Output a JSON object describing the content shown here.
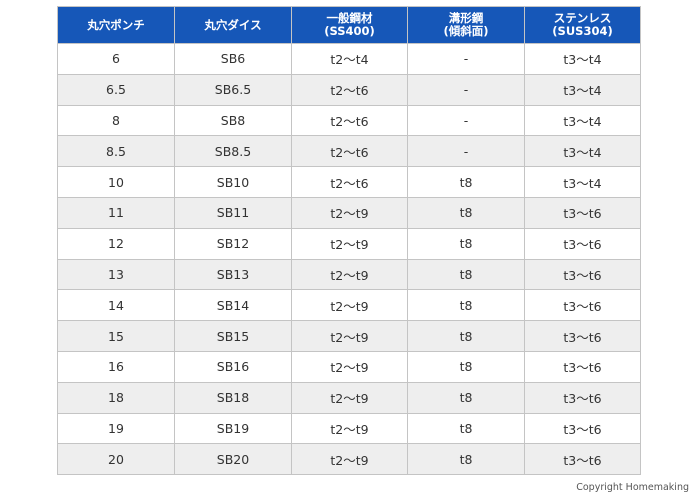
{
  "table": {
    "headers": [
      [
        "丸穴ポンチ"
      ],
      [
        "丸穴ダイス"
      ],
      [
        "一般鋼材",
        "(SS400)"
      ],
      [
        "溝形鋼",
        "(傾斜面)"
      ],
      [
        "ステンレス",
        "(SUS304)"
      ]
    ],
    "rows": [
      [
        "6",
        "SB6",
        "t2～t4",
        "-",
        "t3～t4"
      ],
      [
        "6.5",
        "SB6.5",
        "t2～t6",
        "-",
        "t3～t4"
      ],
      [
        "8",
        "SB8",
        "t2～t6",
        "-",
        "t3～t4"
      ],
      [
        "8.5",
        "SB8.5",
        "t2～t6",
        "-",
        "t3～t4"
      ],
      [
        "10",
        "SB10",
        "t2～t6",
        "t8",
        "t3～t4"
      ],
      [
        "11",
        "SB11",
        "t2～t9",
        "t8",
        "t3～t6"
      ],
      [
        "12",
        "SB12",
        "t2～t9",
        "t8",
        "t3～t6"
      ],
      [
        "13",
        "SB13",
        "t2～t9",
        "t8",
        "t3～t6"
      ],
      [
        "14",
        "SB14",
        "t2～t9",
        "t8",
        "t3～t6"
      ],
      [
        "15",
        "SB15",
        "t2～t9",
        "t8",
        "t3～t6"
      ],
      [
        "16",
        "SB16",
        "t2～t9",
        "t8",
        "t3～t6"
      ],
      [
        "18",
        "SB18",
        "t2～t9",
        "t8",
        "t3～t6"
      ],
      [
        "19",
        "SB19",
        "t2～t9",
        "t8",
        "t3～t6"
      ],
      [
        "20",
        "SB20",
        "t2～t9",
        "t8",
        "t3～t6"
      ]
    ]
  },
  "footer": {
    "copyright": "Copyright Homemaking"
  },
  "colors": {
    "header_background": "#1657b8",
    "header_text": "#ffffff",
    "stripe": "#eeeeee",
    "border": "#c4c4c4"
  }
}
